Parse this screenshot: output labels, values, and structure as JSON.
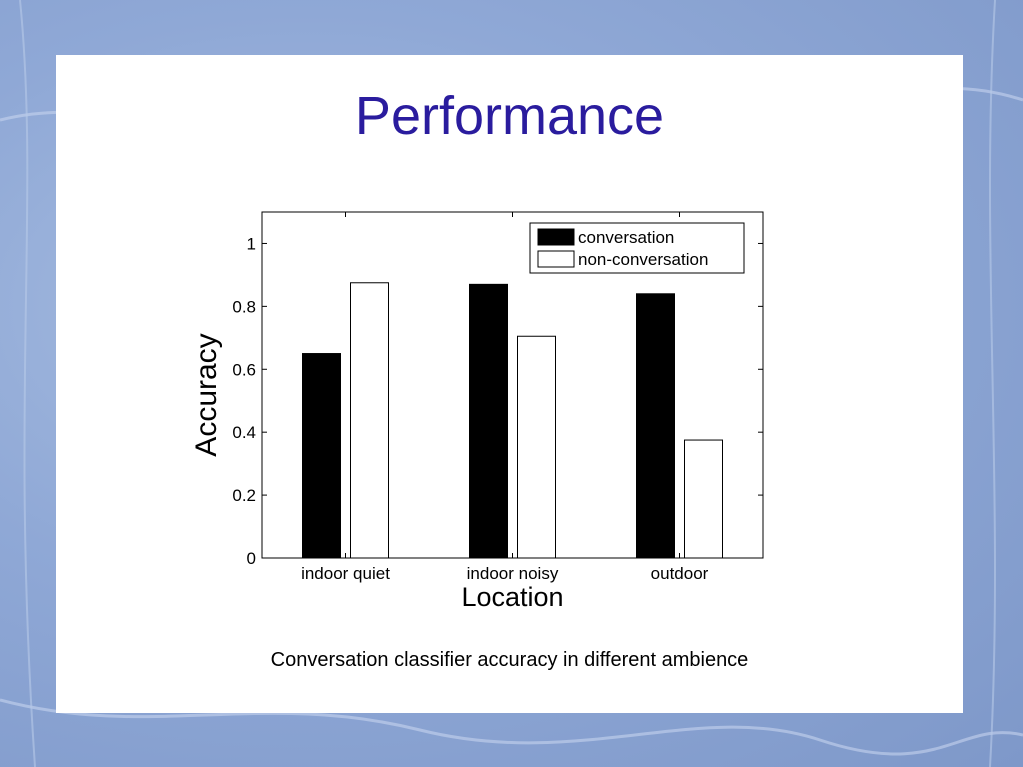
{
  "slide": {
    "title": "Performance",
    "caption": "Conversation classifier accuracy in different ambience"
  },
  "chart_data": {
    "type": "bar",
    "categories": [
      "indoor quiet",
      "indoor noisy",
      "outdoor"
    ],
    "series": [
      {
        "name": "conversation",
        "values": [
          0.65,
          0.87,
          0.84
        ],
        "color": "#000000"
      },
      {
        "name": "non-conversation",
        "values": [
          0.875,
          0.705,
          0.375
        ],
        "color": "#ffffff"
      }
    ],
    "xlabel": "Location",
    "ylabel": "Accuracy",
    "ylim": [
      0,
      1.1
    ],
    "yticks": [
      "0",
      "0.2",
      "0.4",
      "0.6",
      "0.8",
      "1"
    ],
    "grid": false,
    "legend": "top-right"
  },
  "colors": {
    "title": "#2a1c9e",
    "background": "#8fa8d6",
    "slide": "#ffffff"
  }
}
